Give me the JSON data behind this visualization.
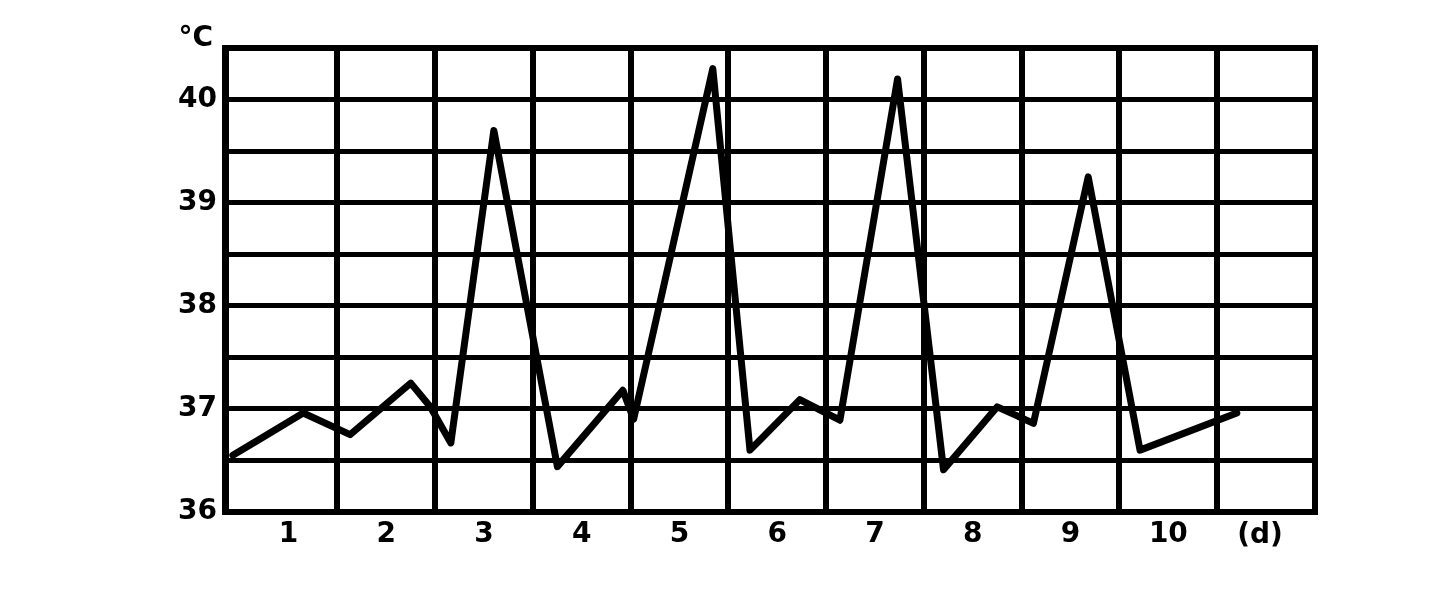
{
  "chart_data": {
    "type": "line",
    "xlabel": "(d)",
    "ylabel": "°C",
    "x": [
      0.43,
      1.15,
      1.63,
      2.25,
      2.45,
      2.66,
      3.1,
      3.75,
      4.42,
      4.53,
      5.34,
      5.72,
      6.23,
      6.64,
      7.23,
      7.7,
      8.25,
      8.62,
      9.18,
      9.71,
      10.7
    ],
    "series": [
      {
        "color": "#000000",
        "values": [
          36.55,
          36.96,
          36.75,
          37.25,
          37.02,
          36.67,
          39.7,
          36.44,
          37.18,
          36.9,
          40.3,
          36.6,
          37.09,
          36.89,
          40.2,
          36.41,
          37.02,
          36.86,
          39.25,
          36.6,
          36.96
        ]
      }
    ],
    "xlim": [
      0.35,
      11.5
    ],
    "xticks": [
      1,
      {
        "value": 1.5,
        "label": null
      },
      2,
      {
        "value": 2.5,
        "label": null
      },
      3,
      {
        "value": 3.5,
        "label": null
      },
      4,
      {
        "value": 4.5,
        "label": null
      },
      5,
      {
        "value": 5.5,
        "label": null
      },
      6,
      {
        "value": 6.5,
        "label": null
      },
      7,
      {
        "value": 7.5,
        "label": null
      },
      8,
      {
        "value": 8.5,
        "label": null
      },
      9,
      {
        "value": 9.5,
        "label": null
      },
      10,
      {
        "value": 10.5,
        "label": null
      }
    ],
    "ylim": [
      36,
      40.5
    ],
    "yticks": [
      36,
      {
        "value": 36.5,
        "label": null
      },
      37,
      {
        "value": 37.5,
        "label": null
      },
      38,
      {
        "value": 38.5,
        "label": null
      },
      39,
      {
        "value": 39.5,
        "label": null
      },
      40,
      {
        "value": 40.5,
        "label": null
      }
    ],
    "grid": true,
    "legend": false,
    "marker": "none",
    "line_style": "solid"
  }
}
